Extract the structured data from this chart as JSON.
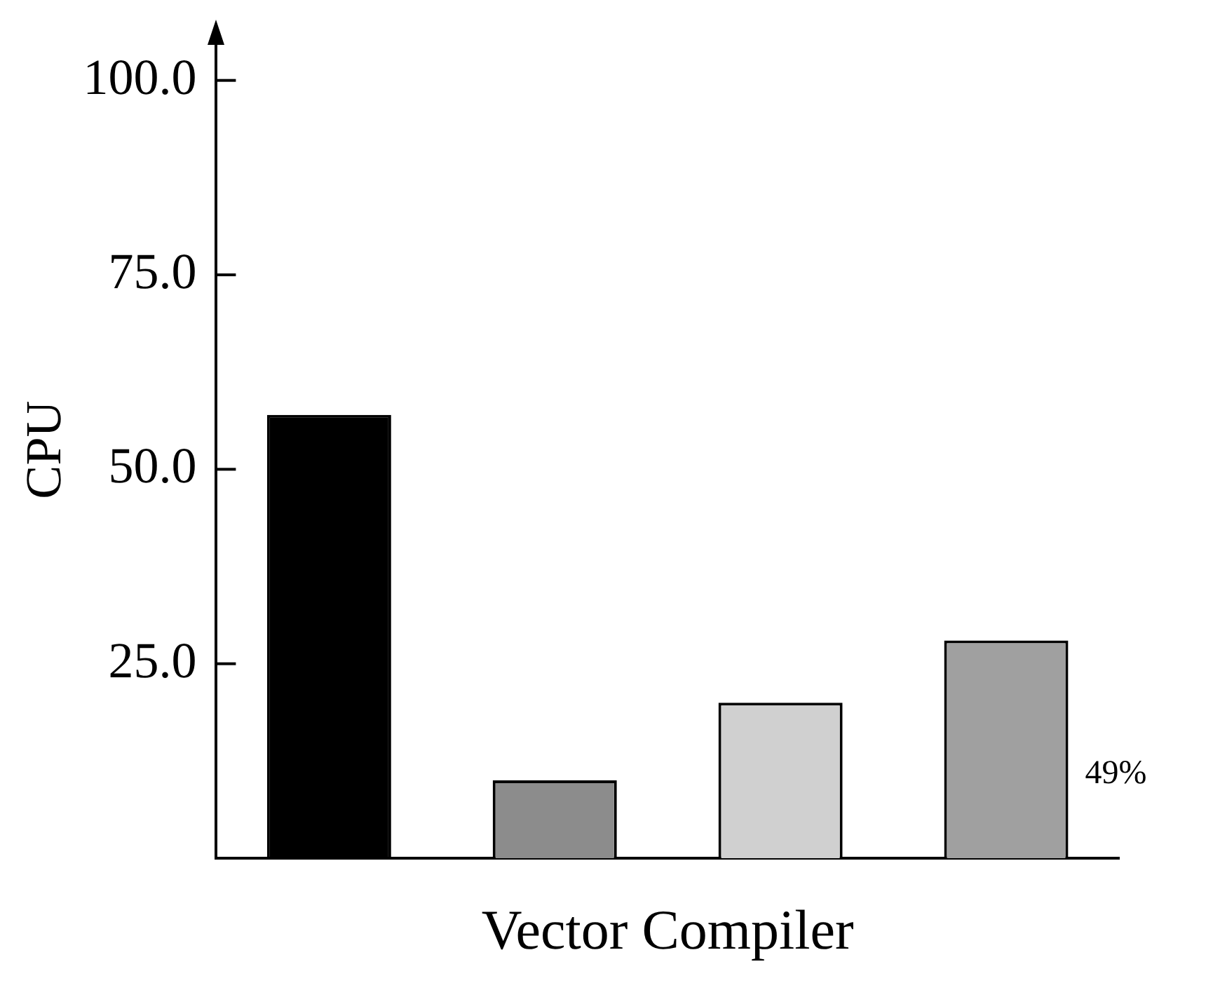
{
  "chart_data": {
    "type": "bar",
    "ylabel": "CPU",
    "xlabel": "Vector Compiler",
    "categories": [
      null,
      null,
      null,
      null
    ],
    "values": [
      57,
      10,
      20,
      28
    ],
    "colors": [
      "#000000",
      "#8c8c8c",
      "#d0d0d0",
      "#a0a0a0"
    ],
    "ylim": [
      0,
      105
    ],
    "yticks": [
      {
        "value": 25,
        "label": "25.0"
      },
      {
        "value": 50,
        "label": "50.0"
      },
      {
        "value": 75,
        "label": "75.0"
      },
      {
        "value": 100,
        "label": "100.0"
      }
    ],
    "grid": false,
    "legend": false,
    "annotations": [
      "49%"
    ]
  }
}
